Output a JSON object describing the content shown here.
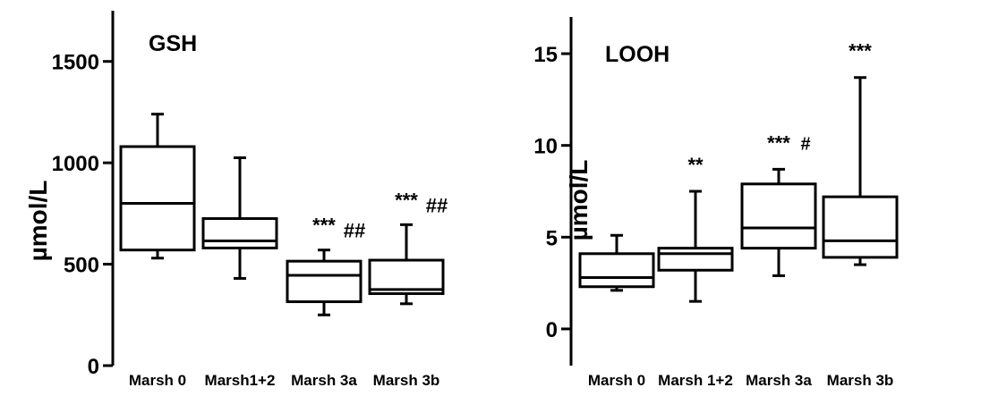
{
  "chart_data": [
    {
      "type": "box",
      "title": "GSH",
      "ylabel": "µmol/L",
      "ylim": [
        0,
        1750
      ],
      "yticks": [
        0,
        500,
        1000,
        1500
      ],
      "ytick_labels": [
        "0",
        "500",
        "1000",
        "1500"
      ],
      "categories": [
        "Marsh 0",
        "Marsh1+2",
        "Marsh 3a",
        "Marsh 3b"
      ],
      "boxes": [
        {
          "min": 530,
          "q1": 570,
          "median": 800,
          "q3": 1080,
          "max": 1240,
          "sig_top": "",
          "sig_sub": ""
        },
        {
          "min": 430,
          "q1": 580,
          "median": 615,
          "q3": 725,
          "max": 1025,
          "sig_top": "",
          "sig_sub": ""
        },
        {
          "min": 250,
          "q1": 315,
          "median": 445,
          "q3": 515,
          "max": 570,
          "sig_top": "***",
          "sig_sub": "##"
        },
        {
          "min": 305,
          "q1": 355,
          "median": 375,
          "q3": 520,
          "max": 695,
          "sig_top": "***",
          "sig_sub": "##"
        }
      ]
    },
    {
      "type": "box",
      "title": "LOOH",
      "ylabel": "µmol/L",
      "ylim": [
        -2,
        17
      ],
      "yticks": [
        0,
        5,
        10,
        15
      ],
      "ytick_labels": [
        "0",
        "5",
        "10",
        "15"
      ],
      "categories": [
        "Marsh 0",
        "Marsh 1+2",
        "Marsh 3a",
        "Marsh 3b"
      ],
      "boxes": [
        {
          "min": 2.1,
          "q1": 2.3,
          "median": 2.8,
          "q3": 4.1,
          "max": 5.1,
          "sig_top": "",
          "sig_sub": ""
        },
        {
          "min": 1.5,
          "q1": 3.2,
          "median": 4.1,
          "q3": 4.4,
          "max": 7.5,
          "sig_top": "**",
          "sig_sub": ""
        },
        {
          "min": 2.9,
          "q1": 4.4,
          "median": 5.5,
          "q3": 7.9,
          "max": 8.7,
          "sig_top": "***",
          "sig_sub": "#"
        },
        {
          "min": 3.5,
          "q1": 3.9,
          "median": 4.8,
          "q3": 7.2,
          "max": 13.7,
          "sig_top": "***",
          "sig_sub": ""
        }
      ]
    }
  ]
}
